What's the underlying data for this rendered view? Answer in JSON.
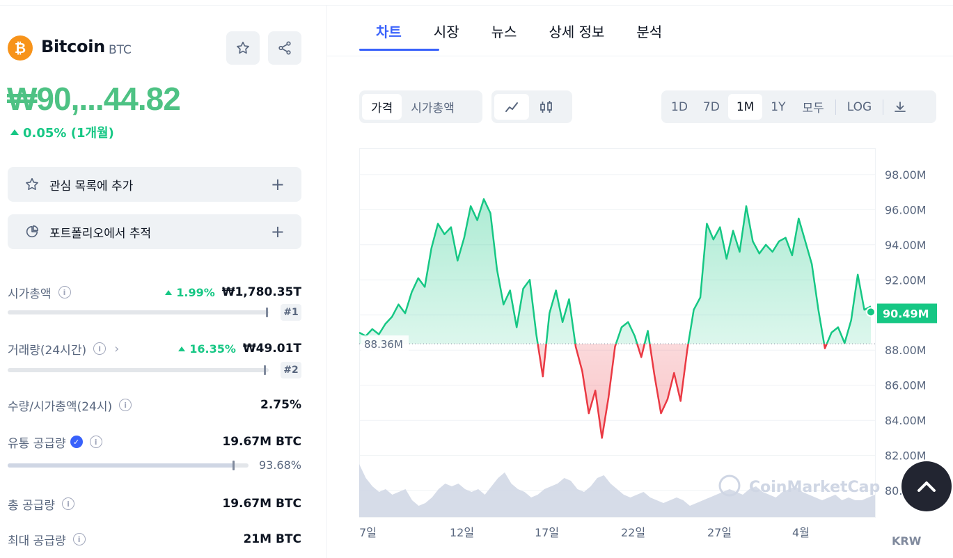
{
  "coin": {
    "name": "Bitcoin",
    "symbol": "BTC",
    "logo_glyph": "₿",
    "price": "₩90,...44.82",
    "change": "0.05% (1개월)"
  },
  "actions": {
    "watchlist": "관심 목록에 추가",
    "portfolio": "포트폴리오에서 추적"
  },
  "stats": {
    "market_cap": {
      "label": "시가총액",
      "pct": "1.99%",
      "value": "₩1,780.35T",
      "rank": "#1",
      "fill": 0.99
    },
    "volume": {
      "label": "거래량(24시간)",
      "pct": "16.35%",
      "value": "₩49.01T",
      "rank": "#2",
      "fill": 0.98
    },
    "vol_mcap": {
      "label": "수량/시가총액(24시)",
      "value": "2.75%"
    },
    "circulating": {
      "label": "유통 공급량",
      "value": "19.67M BTC",
      "percent": "93.68%",
      "fill": 0.9368
    },
    "total": {
      "label": "총 공급량",
      "value": "19.67M BTC"
    },
    "max": {
      "label": "최대 공급량",
      "value": "21M BTC"
    }
  },
  "tabs": [
    "차트",
    "시장",
    "뉴스",
    "상세 정보",
    "분석"
  ],
  "controls": {
    "type": [
      "가격",
      "시가총액"
    ],
    "ranges": [
      "1D",
      "7D",
      "1M",
      "1Y",
      "모두"
    ],
    "log": "LOG",
    "active_range": "1M"
  },
  "chart_data": {
    "type": "area",
    "currency": "KRW",
    "baseline_label": "88.36M",
    "baseline": 88.36,
    "current_label": "90.49M",
    "ylim": [
      78.5,
      99.5
    ],
    "yticks": [
      "98.00M",
      "96.00M",
      "94.00M",
      "92.00M",
      "90.00M",
      "88.00M",
      "86.00M",
      "84.00M",
      "82.00M",
      "80.00M"
    ],
    "xticks": [
      "7일",
      "12일",
      "17일",
      "22일",
      "27일",
      "4월"
    ],
    "watermark": "CoinMarketCap",
    "price_series_millions": [
      89.0,
      88.8,
      89.2,
      88.9,
      89.5,
      89.9,
      90.6,
      90.1,
      91.3,
      92.1,
      91.6,
      93.8,
      95.2,
      94.6,
      95.0,
      93.1,
      94.4,
      96.2,
      95.4,
      96.6,
      95.8,
      92.6,
      90.6,
      91.4,
      89.3,
      91.5,
      92.0,
      88.9,
      86.5,
      90.1,
      91.4,
      89.6,
      90.9,
      88.2,
      86.8,
      84.4,
      85.7,
      83.0,
      85.3,
      88.2,
      89.3,
      89.6,
      88.8,
      87.6,
      89.1,
      86.6,
      84.4,
      85.2,
      86.7,
      85.1,
      88.0,
      90.3,
      91.0,
      95.2,
      94.3,
      95.0,
      93.2,
      94.8,
      93.6,
      96.2,
      94.2,
      93.5,
      94.0,
      93.6,
      94.2,
      94.4,
      93.4,
      95.5,
      94.2,
      92.9,
      90.3,
      88.1,
      89.0,
      89.3,
      88.4,
      89.7,
      92.3,
      90.3,
      90.49
    ],
    "volume_series_relative": [
      0.95,
      0.7,
      0.55,
      0.45,
      0.5,
      0.4,
      0.45,
      0.5,
      0.3,
      0.2,
      0.25,
      0.35,
      0.5,
      0.6,
      0.55,
      0.6,
      0.5,
      0.45,
      0.5,
      0.4,
      0.55,
      0.7,
      0.8,
      0.6,
      0.5,
      0.45,
      0.35,
      0.4,
      0.5,
      0.55,
      0.6,
      0.7,
      0.65,
      0.5,
      0.45,
      0.55,
      0.7,
      0.75,
      0.6,
      0.5,
      0.4,
      0.35,
      0.4,
      0.45,
      0.35,
      0.3,
      0.25,
      0.3,
      0.35,
      0.3,
      0.2,
      0.25,
      0.3,
      0.35,
      0.4,
      0.45,
      0.5,
      0.45,
      0.4,
      0.5,
      0.55,
      0.45,
      0.4,
      0.35,
      0.45,
      0.5,
      0.55,
      0.45,
      0.4,
      0.35,
      0.3,
      0.35,
      0.4,
      0.3,
      0.35,
      0.3,
      0.3,
      0.35,
      0.4
    ],
    "colors": {
      "up": "#16c784",
      "down": "#ea3943",
      "volume": "#cfd6e4"
    }
  }
}
